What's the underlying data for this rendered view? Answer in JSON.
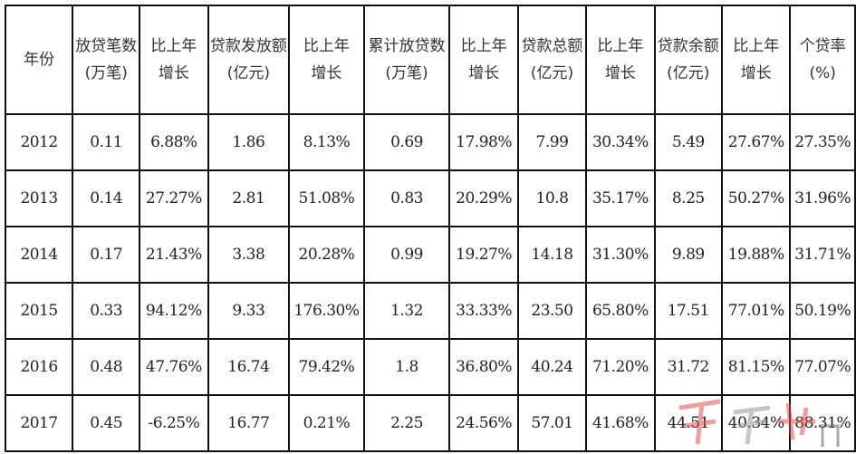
{
  "table": {
    "headers": [
      [
        "年份"
      ],
      [
        "放贷笔数",
        "(万笔)"
      ],
      [
        "比上年",
        "增长"
      ],
      [
        "贷款发放额",
        "(亿元)"
      ],
      [
        "比上年",
        "增长"
      ],
      [
        "累计放贷数",
        "(万笔)"
      ],
      [
        "比上年",
        "增长"
      ],
      [
        "贷款总额",
        "(亿元)"
      ],
      [
        "比上年",
        "增长"
      ],
      [
        "贷款余额",
        "(亿元)"
      ],
      [
        "比上年",
        "增长"
      ],
      [
        "个贷率",
        "(%)"
      ]
    ],
    "rows": [
      [
        "2012",
        "0.11",
        "6.88%",
        "1.86",
        "8.13%",
        "0.69",
        "17.98%",
        "7.99",
        "30.34%",
        "5.49",
        "27.67%",
        "27.35%"
      ],
      [
        "2013",
        "0.14",
        "27.27%",
        "2.81",
        "51.08%",
        "0.83",
        "20.29%",
        "10.8",
        "35.17%",
        "8.25",
        "50.27%",
        "31.96%"
      ],
      [
        "2014",
        "0.17",
        "21.43%",
        "3.38",
        "20.28%",
        "0.99",
        "19.27%",
        "14.18",
        "31.30%",
        "9.89",
        "19.88%",
        "31.71%"
      ],
      [
        "2015",
        "0.33",
        "94.12%",
        "9.33",
        "176.30%",
        "1.32",
        "33.33%",
        "23.50",
        "65.80%",
        "17.51",
        "77.01%",
        "50.19%"
      ],
      [
        "2016",
        "0.48",
        "47.76%",
        "16.74",
        "79.42%",
        "1.8",
        "36.80%",
        "40.24",
        "71.20%",
        "31.72",
        "81.15%",
        "77.07%"
      ],
      [
        "2017",
        "0.45",
        "-6.25%",
        "16.77",
        "0.21%",
        "2.25",
        "24.56%",
        "57.01",
        "41.68%",
        "44.51",
        "40.34%",
        "88.31%"
      ]
    ]
  },
  "watermark": {
    "icon": "site-logo-watermark",
    "color": "#e05050"
  }
}
